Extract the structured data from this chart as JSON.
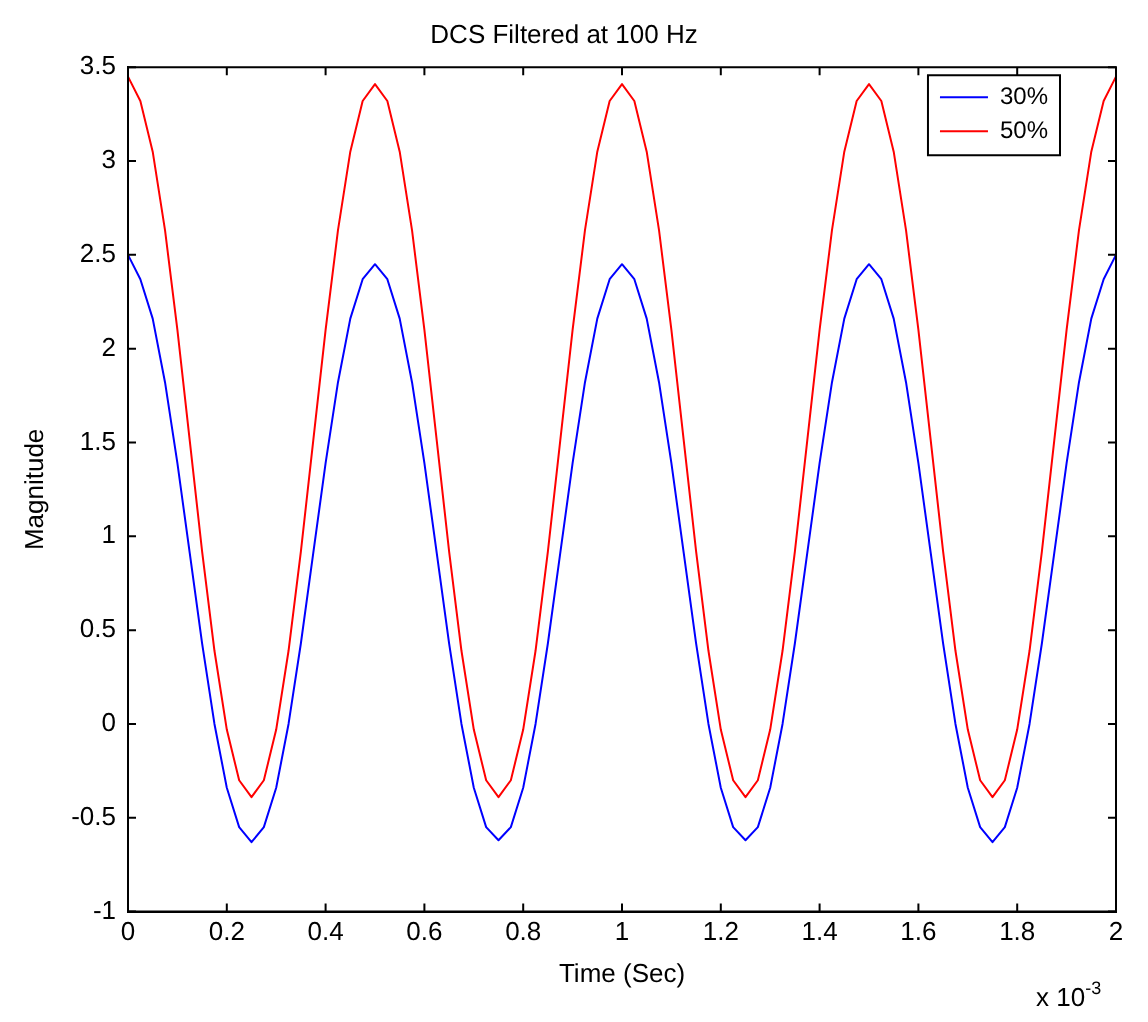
{
  "chart_data": {
    "type": "line",
    "title": "DCS Filtered at 100 Hz",
    "xlabel": "Time (Sec)",
    "ylabel": "Magnitude",
    "annotations": [
      "x 10$^{-3}$"
    ],
    "x": [
      0,
      0.025,
      0.05,
      0.075,
      0.1,
      0.125,
      0.15,
      0.175,
      0.2,
      0.225,
      0.25,
      0.275,
      0.3,
      0.325,
      0.35,
      0.375,
      0.4,
      0.425,
      0.45,
      0.475,
      0.5,
      0.525,
      0.55,
      0.575,
      0.6,
      0.625,
      0.65,
      0.675,
      0.7,
      0.725,
      0.75,
      0.775,
      0.8,
      0.825,
      0.85,
      0.875,
      0.9,
      0.925,
      0.95,
      0.975,
      1,
      1.025,
      1.05,
      1.075,
      1.1,
      1.125,
      1.15,
      1.175,
      1.2,
      1.225,
      1.25,
      1.275,
      1.3,
      1.325,
      1.35,
      1.375,
      1.4,
      1.425,
      1.45,
      1.475,
      1.5,
      1.525,
      1.55,
      1.575,
      1.6,
      1.625,
      1.65,
      1.675,
      1.7,
      1.725,
      1.75,
      1.775,
      1.8,
      1.825,
      1.85,
      1.875,
      1.9,
      1.925,
      1.95,
      1.975,
      2
    ],
    "series": [
      {
        "name": "30%",
        "color": "#0000ff",
        "values": [
          2.5,
          2.37,
          2.16,
          1.82,
          1.39,
          0.91,
          0.43,
          0.0,
          -0.34,
          -0.55,
          -0.63,
          -0.55,
          -0.34,
          0.0,
          0.43,
          0.91,
          1.39,
          1.82,
          2.16,
          2.37,
          2.45,
          2.37,
          2.16,
          1.82,
          1.39,
          0.91,
          0.43,
          0.0,
          -0.34,
          -0.55,
          -0.62,
          -0.55,
          -0.34,
          0.0,
          0.43,
          0.91,
          1.39,
          1.82,
          2.16,
          2.37,
          2.45,
          2.37,
          2.16,
          1.82,
          1.39,
          0.91,
          0.43,
          0.0,
          -0.34,
          -0.55,
          -0.62,
          -0.55,
          -0.34,
          0.0,
          0.43,
          0.91,
          1.39,
          1.82,
          2.16,
          2.37,
          2.45,
          2.37,
          2.16,
          1.82,
          1.39,
          0.91,
          0.43,
          0.0,
          -0.34,
          -0.55,
          -0.63,
          -0.55,
          -0.34,
          0.0,
          0.43,
          0.91,
          1.39,
          1.82,
          2.16,
          2.37,
          2.5
        ]
      },
      {
        "name": "50%",
        "color": "#ff0000",
        "values": [
          3.45,
          3.32,
          3.05,
          2.63,
          2.1,
          1.51,
          0.92,
          0.39,
          -0.03,
          -0.3,
          -0.39,
          -0.3,
          -0.03,
          0.39,
          0.92,
          1.51,
          2.1,
          2.63,
          3.05,
          3.32,
          3.41,
          3.32,
          3.05,
          2.63,
          2.1,
          1.51,
          0.92,
          0.39,
          -0.03,
          -0.3,
          -0.39,
          -0.3,
          -0.03,
          0.39,
          0.92,
          1.51,
          2.1,
          2.63,
          3.05,
          3.32,
          3.41,
          3.32,
          3.05,
          2.63,
          2.1,
          1.51,
          0.92,
          0.39,
          -0.03,
          -0.3,
          -0.39,
          -0.3,
          -0.03,
          0.39,
          0.92,
          1.51,
          2.1,
          2.63,
          3.05,
          3.32,
          3.41,
          3.32,
          3.05,
          2.63,
          2.1,
          1.51,
          0.92,
          0.39,
          -0.03,
          -0.3,
          -0.39,
          -0.3,
          -0.03,
          0.39,
          0.92,
          1.51,
          2.1,
          2.63,
          3.05,
          3.32,
          3.45
        ]
      }
    ],
    "xlim": [
      0,
      2
    ],
    "xticks": [
      0,
      0.2,
      0.4,
      0.6,
      0.8,
      1,
      1.2,
      1.4,
      1.6,
      1.8,
      2
    ],
    "ylim": [
      -1,
      3.5
    ],
    "yticks": [
      -1,
      -0.5,
      0,
      0.5,
      1,
      1.5,
      2,
      2.5,
      3,
      3.5
    ],
    "grid": false,
    "legend": "top right",
    "marker": "none",
    "line_style": "solid"
  }
}
